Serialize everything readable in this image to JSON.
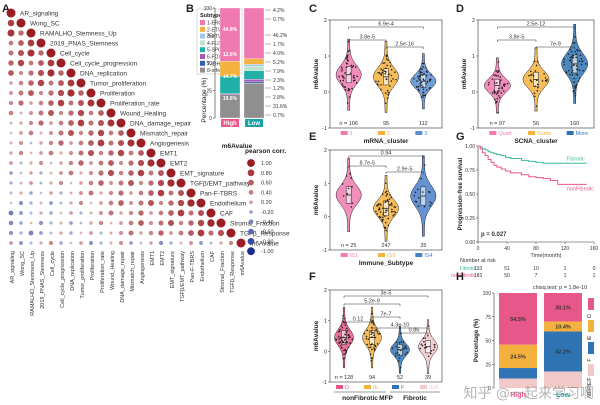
{
  "panels": {
    "A": "A",
    "B": "B",
    "C": "C",
    "D": "D",
    "E": "E",
    "F": "F",
    "G": "G",
    "H": "H"
  },
  "colors": {
    "high": "#e8578a",
    "low": "#19a3a3",
    "pos": "#9b1c22",
    "neg": "#1b2b8f",
    "c1": "#f07ab0",
    "c2": "#f5b13d",
    "c3": "#5b8ed1",
    "quiet": "#f07ab0",
    "some": "#f5b13d",
    "more": "#2e74b5",
    "is1": "#f07ab0",
    "is3": "#f5b13d",
    "is4": "#4a7fc8",
    "fibrotic": "#3fb8a0",
    "nonfibrotic": "#e8578a",
    "mfp_d": "#e8578a",
    "mfp_ie": "#f5b13d",
    "mfp_f": "#2e74b5",
    "mfp_ief": "#f2c9c9"
  },
  "chart_data": [
    {
      "panel": "A",
      "type": "heatmap",
      "title": "",
      "variables": [
        "AR_signaling",
        "Wong_SC",
        "RAMALHO_Stemness_Up",
        "2019_PNAS_Stemness",
        "Cell_cycle",
        "Cell_cycle_progression",
        "DNA_replication",
        "Tumor_proliferation",
        "Proliferation",
        "Proliferation_rate",
        "Wound_Healing",
        "DNA_damage_repair",
        "Mismatch_repair",
        "Angiogenesis",
        "EMT1",
        "EMT2",
        "EMT_signature",
        "TGFβ/EMT_pathway",
        "Pan-F-TBRS",
        "Endothelium",
        "CAF",
        "Stromal_Fraction",
        "TGFβ_Response",
        "m6Avalue"
      ],
      "legend_title": "pearson corr.",
      "legend_values": [
        1.0,
        0.8,
        0.6,
        0.4,
        0.2,
        -0.2,
        -0.4,
        -0.6,
        -0.8,
        -1.0
      ],
      "legend_labels": [
        "1.00",
        "0.80",
        "0.60",
        "0.40",
        "0.20",
        "-0.20",
        "-0.40",
        "-0.60",
        "-0.80",
        "-1.00"
      ]
    },
    {
      "panel": "B",
      "type": "bar",
      "title": "",
      "xlabel": "m6Avalue",
      "ylabel": "Percentage (%)",
      "categories": [
        "High",
        "Low"
      ],
      "legend_title": "Subtype",
      "series": [
        {
          "name": "1-ERG",
          "color": "#f07ab0",
          "values": [
            44.8,
            46.2
          ]
        },
        {
          "name": "2-ETV1",
          "color": "#f5b13d",
          "values": [
            12.6,
            5.2
          ]
        },
        {
          "name": "3-ETV4",
          "color": "#9fc9ea",
          "values": [
            0.0,
            1.7
          ]
        },
        {
          "name": "4-FLI1",
          "color": "#bfe3cf",
          "values": [
            0.0,
            4.0
          ]
        },
        {
          "name": "5-SPOP",
          "color": "#20b0a8",
          "values": [
            14.7,
            7.9
          ]
        },
        {
          "name": "6-FOXA1",
          "color": "#a05ab5",
          "values": [
            0.7,
            2.3
          ]
        },
        {
          "name": "7-IDH1",
          "color": "#2f5fb0",
          "values": [
            0.0,
            1.2
          ]
        },
        {
          "name": "8-other",
          "color": "#8f8f8f",
          "values": [
            19.6,
            31.6
          ]
        }
      ],
      "left_labels": [
        "44.8%",
        "12.6%",
        "14.7%",
        "19.6%"
      ],
      "right_labels": [
        "4.2%",
        "0.7%",
        "46.2%",
        "1.7%",
        "4.0%",
        "5.2%",
        "7.9%",
        "2.3%",
        "1.2%",
        "2.8%",
        "31.6%",
        "0.7%"
      ],
      "ylim": [
        0,
        100
      ],
      "yticks": [
        "0",
        "25",
        "50",
        "75",
        "100"
      ]
    },
    {
      "panel": "C",
      "type": "violin",
      "xlabel": "mRNA_cluster",
      "ylabel": "m6Avalue",
      "categories": [
        "1",
        "2",
        "3"
      ],
      "n_labels": [
        "n = 106",
        "95",
        "112"
      ],
      "medians": [
        0.48,
        0.42,
        0.3
      ],
      "spread": [
        0.45,
        0.45,
        0.35
      ],
      "n": [
        106,
        95,
        112
      ],
      "pvalues": [
        "6.9e-4",
        "3.8e-5",
        "2.5e-16"
      ],
      "ylim": [
        -1,
        2
      ],
      "yticks": [
        "2",
        "1",
        "0",
        "-1"
      ]
    },
    {
      "panel": "D",
      "type": "violin",
      "xlabel": "SCNA_cluster",
      "ylabel": "m6Avalue",
      "categories": [
        "Quiet",
        "Some",
        "More"
      ],
      "n_labels": [
        "n = 97",
        "56",
        "160"
      ],
      "medians": [
        0.18,
        0.35,
        0.78
      ],
      "spread": [
        0.35,
        0.4,
        0.5
      ],
      "n": [
        97,
        56,
        160
      ],
      "pvalues": [
        "2.5e-12",
        "3.8e-5",
        "7e-9"
      ],
      "ylim": [
        -1,
        2
      ],
      "yticks": [
        "2",
        "1",
        "0",
        "-1"
      ]
    },
    {
      "panel": "E",
      "type": "violin",
      "xlabel": "Immune_Subtype",
      "ylabel": "m6Avalue",
      "categories": [
        "IS1",
        "IS3",
        "IS4"
      ],
      "n_labels": [
        "n = 25",
        "247",
        "35"
      ],
      "medians": [
        0.65,
        0.25,
        0.62
      ],
      "spread": [
        0.5,
        0.45,
        0.55
      ],
      "n": [
        25,
        247,
        35
      ],
      "pvalues": [
        "0.94",
        "8.7e-5",
        "2.9e-5"
      ],
      "ylim": [
        -1,
        2
      ],
      "yticks": [
        "2",
        "1",
        "0",
        "-1"
      ]
    },
    {
      "panel": "F",
      "type": "violin",
      "xlabel": "MFP",
      "ylabel": "m6Avalue",
      "categories": [
        "D",
        "IE",
        "F",
        "IE/F"
      ],
      "groups": [
        "nonFibrotic",
        "Fibrotic"
      ],
      "n_labels": [
        "n = 128",
        "94",
        "52",
        "39"
      ],
      "medians": [
        0.45,
        0.45,
        0.05,
        0.15
      ],
      "spread": [
        0.45,
        0.45,
        0.35,
        0.4
      ],
      "n": [
        128,
        94,
        52,
        39
      ],
      "pvalues": [
        "3e-5",
        "5.2e-9",
        "7e-7",
        "0.12",
        "4.3e-10",
        "0.86"
      ],
      "ylim": [
        -1,
        2
      ],
      "yticks": [
        "2",
        "1",
        "0",
        "-1"
      ]
    },
    {
      "panel": "G",
      "type": "line",
      "xlabel": "Time(month)",
      "ylabel": "Progression-free survival",
      "series": [
        {
          "name": "Fibrotic",
          "color": "#3fb8a0",
          "x": [
            0,
            3,
            6,
            10,
            14,
            18,
            22,
            26,
            32,
            38,
            45,
            60,
            70,
            80,
            90,
            100,
            110,
            120,
            150
          ],
          "y": [
            1.0,
            0.99,
            0.97,
            0.96,
            0.94,
            0.93,
            0.92,
            0.91,
            0.9,
            0.88,
            0.87,
            0.85,
            0.84,
            0.83,
            0.82,
            0.82,
            0.82,
            0.82,
            0.82
          ]
        },
        {
          "name": "nonFibrotic",
          "color": "#e8578a",
          "x": [
            0,
            3,
            6,
            10,
            14,
            18,
            22,
            26,
            32,
            38,
            45,
            60,
            70,
            80,
            90,
            100,
            110,
            120,
            150
          ],
          "y": [
            1.0,
            0.97,
            0.93,
            0.9,
            0.86,
            0.83,
            0.8,
            0.78,
            0.76,
            0.74,
            0.72,
            0.7,
            0.68,
            0.67,
            0.66,
            0.64,
            0.6,
            0.6,
            0.6
          ]
        }
      ],
      "pvalue": "p = 0.027",
      "xticks": [
        "0",
        "40",
        "80",
        "120",
        "160"
      ],
      "yticks": [
        "1.00",
        "0.75",
        "0.50",
        "0.25",
        "0.00"
      ],
      "xlim": [
        0,
        160
      ],
      "ylim": [
        0,
        1
      ],
      "risk_title": "Number at risk",
      "risk_rows": [
        {
          "label": "Fibrotic",
          "values": [
            "133",
            "51",
            "10",
            "1",
            "0"
          ]
        },
        {
          "label": "nonFibrotic",
          "values": [
            "183",
            "50",
            "7",
            "1",
            "1"
          ]
        }
      ]
    },
    {
      "panel": "H",
      "type": "bar",
      "title": "chisq.test: p = 1.8e-10",
      "ylabel": "Percentage (%)",
      "categories": [
        "High",
        "Low"
      ],
      "series": [
        {
          "name": "D",
          "color": "#e8578a",
          "values": [
            54.5,
            30.1
          ]
        },
        {
          "name": "IE",
          "color": "#f5b13d",
          "values": [
            24.5,
            10.4
          ]
        },
        {
          "name": "F",
          "color": "#2e74b5",
          "values": [
            11.0,
            42.2
          ]
        },
        {
          "name": "IE/F",
          "color": "#f2c9c9",
          "values": [
            10.0,
            17.3
          ]
        }
      ],
      "segment_labels": [
        "54.5%",
        "24.5%",
        "30.1%",
        "10.4%",
        "42.2%"
      ],
      "legend_title": "MFP",
      "ylim": [
        0,
        100
      ],
      "yticks": [
        "100",
        "75",
        "50",
        "25",
        "0"
      ]
    }
  ],
  "watermark": "知乎 @一起来学习啊"
}
